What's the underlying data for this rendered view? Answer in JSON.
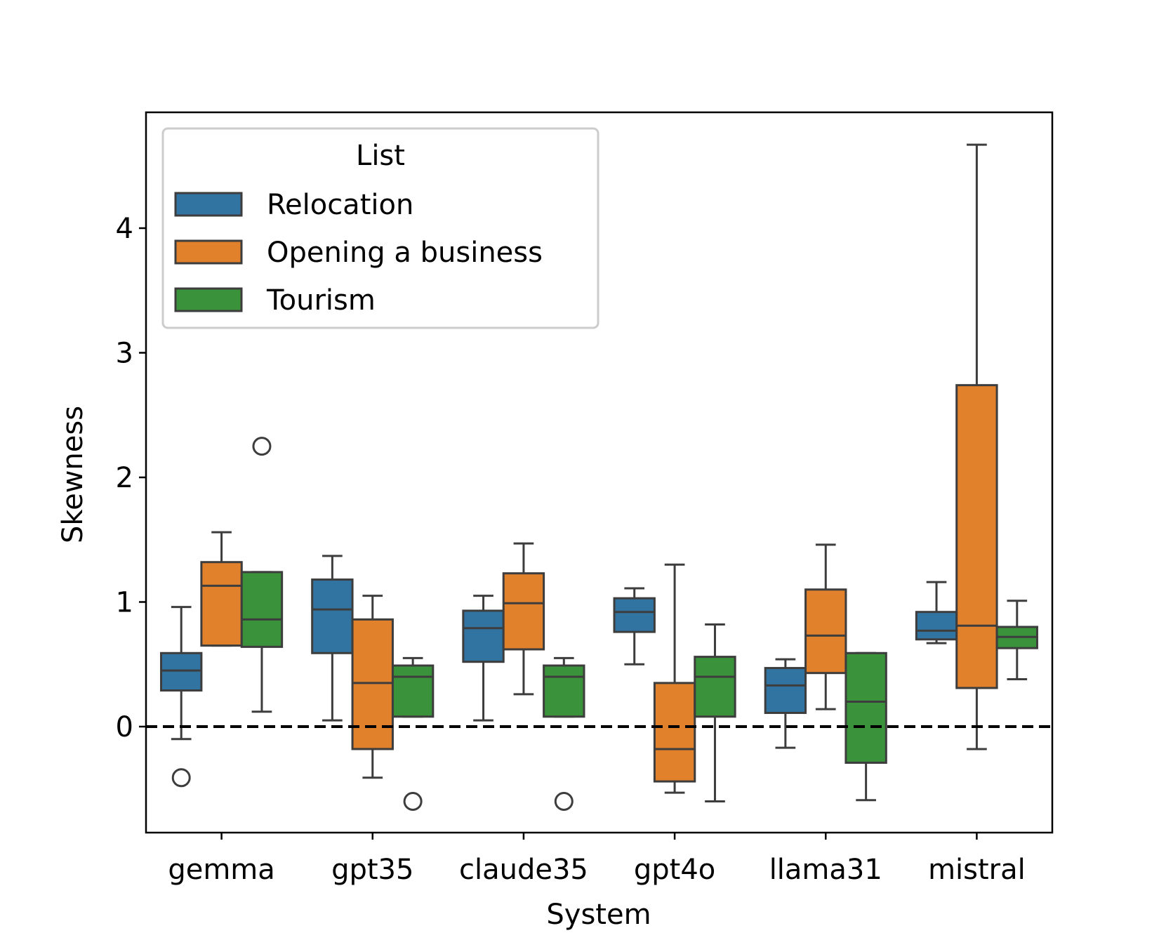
{
  "chart_data": {
    "type": "box",
    "xlabel": "System",
    "ylabel": "Skewness",
    "ylim": [
      -0.85,
      4.95
    ],
    "yticks": [
      0,
      1,
      2,
      3,
      4
    ],
    "ytick_labels": [
      "0",
      "1",
      "2",
      "3",
      "4"
    ],
    "reference_line": {
      "y": 0,
      "style": "dashed"
    },
    "categories": [
      "gemma",
      "gpt35",
      "claude35",
      "gpt4o",
      "llama31",
      "mistral"
    ],
    "legend": {
      "title": "List",
      "position": "upper-left"
    },
    "series": [
      {
        "name": "Relocation",
        "color": "#3274a1",
        "boxes": [
          {
            "whislo": -0.1,
            "q1": 0.29,
            "med": 0.45,
            "q3": 0.59,
            "whishi": 0.96,
            "fliers": [
              -0.41
            ]
          },
          {
            "whislo": 0.05,
            "q1": 0.59,
            "med": 0.94,
            "q3": 1.18,
            "whishi": 1.37,
            "fliers": []
          },
          {
            "whislo": 0.05,
            "q1": 0.52,
            "med": 0.79,
            "q3": 0.93,
            "whishi": 1.05,
            "fliers": []
          },
          {
            "whislo": 0.5,
            "q1": 0.76,
            "med": 0.92,
            "q3": 1.03,
            "whishi": 1.11,
            "fliers": []
          },
          {
            "whislo": -0.17,
            "q1": 0.11,
            "med": 0.33,
            "q3": 0.47,
            "whishi": 0.54,
            "fliers": []
          },
          {
            "whislo": 0.67,
            "q1": 0.7,
            "med": 0.77,
            "q3": 0.92,
            "whishi": 1.16,
            "fliers": []
          }
        ]
      },
      {
        "name": "Opening a business",
        "color": "#e1812c",
        "boxes": [
          {
            "whislo": 0.65,
            "q1": 0.65,
            "med": 1.13,
            "q3": 1.32,
            "whishi": 1.56,
            "fliers": []
          },
          {
            "whislo": -0.41,
            "q1": -0.18,
            "med": 0.35,
            "q3": 0.86,
            "whishi": 1.05,
            "fliers": []
          },
          {
            "whislo": 0.26,
            "q1": 0.62,
            "med": 0.99,
            "q3": 1.23,
            "whishi": 1.47,
            "fliers": []
          },
          {
            "whislo": -0.53,
            "q1": -0.44,
            "med": -0.18,
            "q3": 0.35,
            "whishi": 1.3,
            "fliers": []
          },
          {
            "whislo": 0.14,
            "q1": 0.43,
            "med": 0.73,
            "q3": 1.1,
            "whishi": 1.46,
            "fliers": []
          },
          {
            "whislo": -0.18,
            "q1": 0.31,
            "med": 0.81,
            "q3": 2.74,
            "whishi": 4.67,
            "fliers": []
          }
        ]
      },
      {
        "name": "Tourism",
        "color": "#3a923a",
        "boxes": [
          {
            "whislo": 0.12,
            "q1": 0.64,
            "med": 0.86,
            "q3": 1.24,
            "whishi": 1.24,
            "fliers": [
              2.25
            ]
          },
          {
            "whislo": 0.08,
            "q1": 0.08,
            "med": 0.4,
            "q3": 0.49,
            "whishi": 0.55,
            "fliers": [
              -0.6
            ]
          },
          {
            "whislo": 0.08,
            "q1": 0.08,
            "med": 0.4,
            "q3": 0.49,
            "whishi": 0.55,
            "fliers": [
              -0.6
            ]
          },
          {
            "whislo": -0.6,
            "q1": 0.08,
            "med": 0.4,
            "q3": 0.56,
            "whishi": 0.82,
            "fliers": []
          },
          {
            "whislo": -0.59,
            "q1": -0.29,
            "med": 0.2,
            "q3": 0.59,
            "whishi": 0.59,
            "fliers": []
          },
          {
            "whislo": 0.38,
            "q1": 0.63,
            "med": 0.72,
            "q3": 0.8,
            "whishi": 1.01,
            "fliers": []
          }
        ]
      }
    ]
  }
}
